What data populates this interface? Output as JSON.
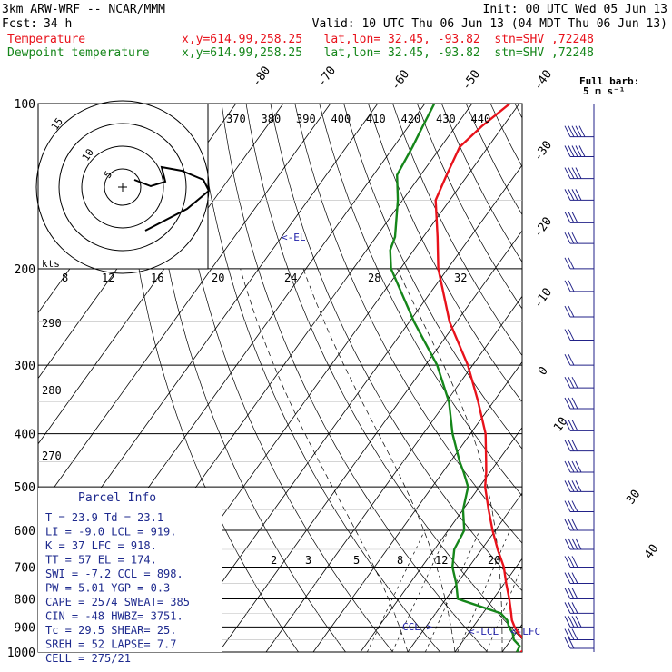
{
  "header": {
    "model": "3km ARW-WRF -- NCAR/MMM",
    "init": "Init: 00 UTC Wed 05 Jun 13",
    "fcst_label": "Fcst:",
    "fcst_value": "34 h",
    "valid": "Valid: 10 UTC Thu 06 Jun 13 (04 MDT Thu 06 Jun 13)",
    "temp_label": "Temperature",
    "dew_label": "Dewpoint temperature",
    "temp_loc": "x,y=614.99,258.25   lat,lon= 32.45, -93.82  stn=SHV ,72248",
    "dew_loc": "x,y=614.99,258.25   lat,lon= 32.45, -93.82  stn=SHV ,72248",
    "barb_key_1": "Full barb:",
    "barb_key_2": "5 m s⁻¹"
  },
  "colors": {
    "temperature": "#e8121b",
    "dewpoint": "#15861a",
    "barbs": "#222288",
    "el_marker": "#2222aa",
    "parcel_text": "#1e2a8e"
  },
  "chart_data": {
    "type": "line",
    "title": "",
    "y_axis": {
      "label": "",
      "scale": "log",
      "range": [
        1000,
        100
      ],
      "ticks": [
        "100",
        "200",
        "300",
        "400",
        "500",
        "600",
        "700",
        "800",
        "900",
        "1000"
      ]
    },
    "series": [
      {
        "name": "Temperature",
        "points": [
          [
            1000,
            23.9
          ],
          [
            975,
            25.3
          ],
          [
            950,
            22.8
          ],
          [
            925,
            20.6
          ],
          [
            900,
            18.8
          ],
          [
            875,
            17.2
          ],
          [
            850,
            16.0
          ],
          [
            800,
            13.4
          ],
          [
            750,
            10.4
          ],
          [
            700,
            7.4
          ],
          [
            650,
            3.4
          ],
          [
            600,
            -0.6
          ],
          [
            550,
            -4.6
          ],
          [
            500,
            -8.8
          ],
          [
            470,
            -10.8
          ],
          [
            450,
            -12.4
          ],
          [
            400,
            -16.8
          ],
          [
            350,
            -23.2
          ],
          [
            300,
            -31.0
          ],
          [
            250,
            -41.5
          ],
          [
            200,
            -52.0
          ],
          [
            175,
            -57.0
          ],
          [
            150,
            -63.0
          ],
          [
            135,
            -64.5
          ],
          [
            120,
            -66.0
          ],
          [
            110,
            -64.5
          ],
          [
            100,
            -62.0
          ]
        ]
      },
      {
        "name": "Dewpoint temperature",
        "points": [
          [
            1000,
            23.1
          ],
          [
            975,
            22.8
          ],
          [
            950,
            20.6
          ],
          [
            925,
            19.4
          ],
          [
            900,
            17.6
          ],
          [
            875,
            16.2
          ],
          [
            850,
            13.8
          ],
          [
            800,
            2.5
          ],
          [
            750,
            -0.2
          ],
          [
            700,
            -3.5
          ],
          [
            650,
            -5.8
          ],
          [
            600,
            -6.6
          ],
          [
            550,
            -10.0
          ],
          [
            500,
            -12.4
          ],
          [
            470,
            -15.6
          ],
          [
            450,
            -18.0
          ],
          [
            400,
            -23.8
          ],
          [
            350,
            -29.4
          ],
          [
            300,
            -37.5
          ],
          [
            250,
            -49.0
          ],
          [
            200,
            -62.0
          ],
          [
            185,
            -65.0
          ],
          [
            175,
            -66.0
          ],
          [
            150,
            -71.0
          ],
          [
            135,
            -75.0
          ],
          [
            120,
            -76.0
          ],
          [
            110,
            -77.0
          ],
          [
            100,
            -78.0
          ]
        ]
      }
    ],
    "isotherm_labels": [
      "-80",
      "-70",
      "-60",
      "-50",
      "-40",
      "-30",
      "-20",
      "-10",
      "0",
      "10",
      "30",
      "40"
    ],
    "theta_labels": [
      "370",
      "380",
      "390",
      "400",
      "410",
      "420",
      "430",
      "440"
    ],
    "theta_side_labels": [
      "290",
      "280",
      "270"
    ],
    "mixing_ratio_labels": [
      "2",
      "3",
      "5",
      "8",
      "12",
      "20"
    ],
    "hodograph": {
      "unit_label": "kts",
      "speed_labels": [
        "8",
        "12",
        "16",
        "20",
        "24",
        "28",
        "32"
      ],
      "ring_labels": [
        "5",
        "10",
        "15"
      ]
    },
    "markers": {
      "el": "<-EL",
      "lcl": "<-LCL",
      "lfc": "<-LFC",
      "ccl": "CCL >"
    },
    "wind_barbs": [
      {
        "p": 115,
        "dir": 265,
        "spd": 5
      },
      {
        "p": 125,
        "dir": 265,
        "spd": 5
      },
      {
        "p": 137,
        "dir": 265,
        "spd": 4
      },
      {
        "p": 150,
        "dir": 260,
        "spd": 4
      },
      {
        "p": 165,
        "dir": 260,
        "spd": 3
      },
      {
        "p": 180,
        "dir": 250,
        "spd": 3
      },
      {
        "p": 200,
        "dir": 240,
        "spd": 2
      },
      {
        "p": 220,
        "dir": 230,
        "spd": 2
      },
      {
        "p": 245,
        "dir": 220,
        "spd": 2
      },
      {
        "p": 270,
        "dir": 210,
        "spd": 2
      },
      {
        "p": 300,
        "dir": 200,
        "spd": 2
      },
      {
        "p": 330,
        "dir": 210,
        "spd": 3
      },
      {
        "p": 360,
        "dir": 220,
        "spd": 3
      },
      {
        "p": 395,
        "dir": 230,
        "spd": 3
      },
      {
        "p": 430,
        "dir": 240,
        "spd": 3
      },
      {
        "p": 470,
        "dir": 250,
        "spd": 4
      },
      {
        "p": 510,
        "dir": 250,
        "spd": 4
      },
      {
        "p": 555,
        "dir": 245,
        "spd": 3
      },
      {
        "p": 600,
        "dir": 245,
        "spd": 3
      },
      {
        "p": 650,
        "dir": 245,
        "spd": 4
      },
      {
        "p": 700,
        "dir": 240,
        "spd": 3
      },
      {
        "p": 750,
        "dir": 225,
        "spd": 3
      },
      {
        "p": 800,
        "dir": 220,
        "spd": 3
      },
      {
        "p": 850,
        "dir": 210,
        "spd": 3
      },
      {
        "p": 900,
        "dir": 200,
        "spd": 4
      },
      {
        "p": 950,
        "dir": 190,
        "spd": 3
      },
      {
        "p": 985,
        "dir": 180,
        "spd": 2
      }
    ]
  },
  "parcel_info": {
    "title": "Parcel Info",
    "rows": [
      "T  =    23.9  Td =   23.1",
      "LI =   -9.0  LCL =  919.",
      "K  =     37  LFC =  918.",
      "TT =     57  EL  =  174.",
      "SWI =  -7.2  CCL =  898.",
      "PW =   5.01  YGP =   0.3",
      "CAPE = 2574  SWEAT=  385",
      "CIN =   -48  HWBZ= 3751.",
      "Tc =   29.5  SHEAR=  25.",
      "SREH =   52  LAPSE=  7.7",
      "CELL = 275/21"
    ]
  }
}
